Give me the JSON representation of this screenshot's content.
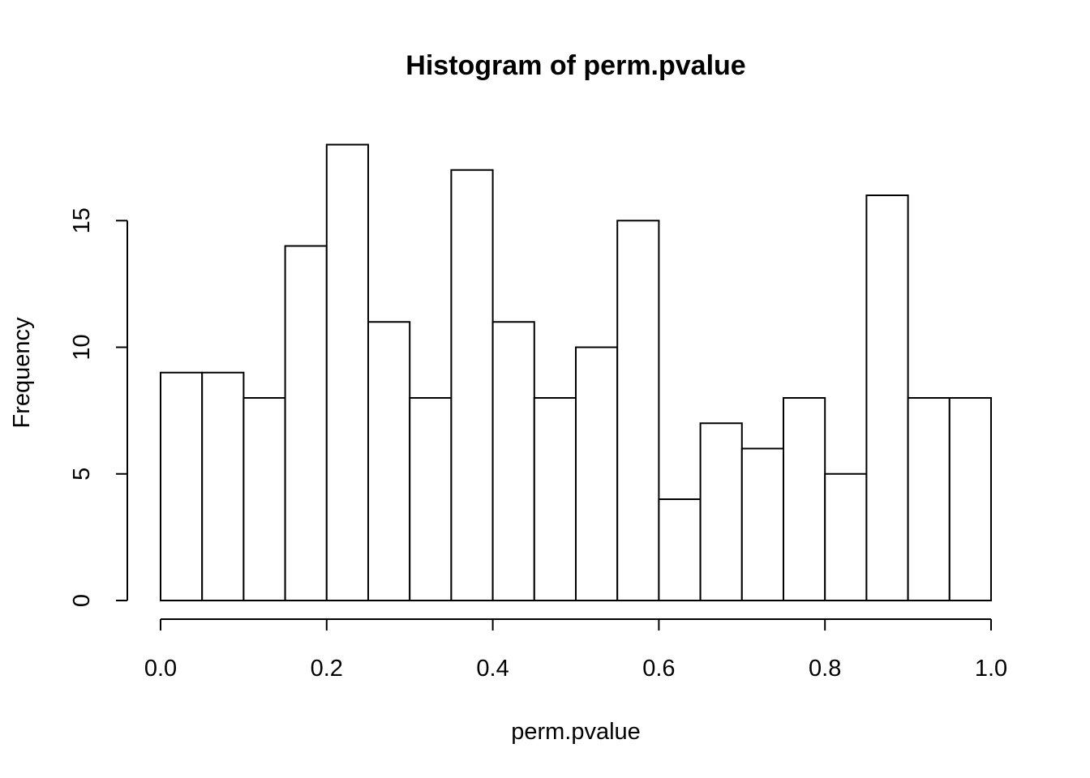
{
  "chart_data": {
    "type": "bar",
    "title": "Histogram of perm.pvalue",
    "xlabel": "perm.pvalue",
    "ylabel": "Frequency",
    "bin_edges": [
      0.0,
      0.05,
      0.1,
      0.15,
      0.2,
      0.25,
      0.3,
      0.35,
      0.4,
      0.45,
      0.5,
      0.55,
      0.6,
      0.65,
      0.7,
      0.75,
      0.8,
      0.85,
      0.9,
      0.95,
      1.0
    ],
    "values": [
      9,
      9,
      8,
      14,
      18,
      11,
      8,
      17,
      11,
      8,
      10,
      15,
      4,
      7,
      6,
      8,
      5,
      16,
      8,
      8
    ],
    "xlim": [
      0.0,
      1.0
    ],
    "ylim": [
      0,
      18
    ],
    "x_ticks": [
      0.0,
      0.2,
      0.4,
      0.6,
      0.8,
      1.0
    ],
    "x_tick_labels": [
      "0.0",
      "0.2",
      "0.4",
      "0.6",
      "0.8",
      "1.0"
    ],
    "y_ticks": [
      0,
      5,
      10,
      15
    ],
    "y_tick_labels": [
      "0",
      "5",
      "10",
      "15"
    ],
    "grid": false,
    "legend": "none",
    "bar_fill": "#ffffff",
    "bar_stroke": "#000000"
  }
}
